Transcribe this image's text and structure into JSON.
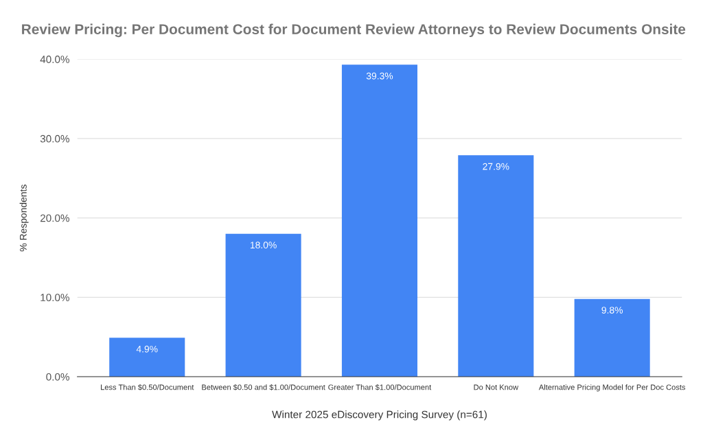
{
  "chart_data": {
    "type": "bar",
    "title": "Review Pricing: Per Document Cost for Document Review Attorneys to Review Documents Onsite",
    "xlabel": "Winter 2025 eDiscovery Pricing Survey (n=61)",
    "ylabel": "% Respondents",
    "categories": [
      "Less Than $0.50/Document",
      "Between $0.50 and $1.00/Document",
      "Greater Than $1.00/Document",
      "Do Not Know",
      "Alternative Pricing Model for Per Doc Costs"
    ],
    "values": [
      4.9,
      18.0,
      39.3,
      27.9,
      9.8
    ],
    "value_labels": [
      "4.9%",
      "18.0%",
      "39.3%",
      "27.9%",
      "9.8%"
    ],
    "color": "#4285f4",
    "ylim": [
      0,
      40
    ],
    "yticks": [
      {
        "value": 0,
        "label": "0.0%"
      },
      {
        "value": 10,
        "label": "10.0%"
      },
      {
        "value": 20,
        "label": "20.0%"
      },
      {
        "value": 30,
        "label": "30.0%"
      },
      {
        "value": 40,
        "label": "40.0%"
      }
    ],
    "grid": "y"
  }
}
